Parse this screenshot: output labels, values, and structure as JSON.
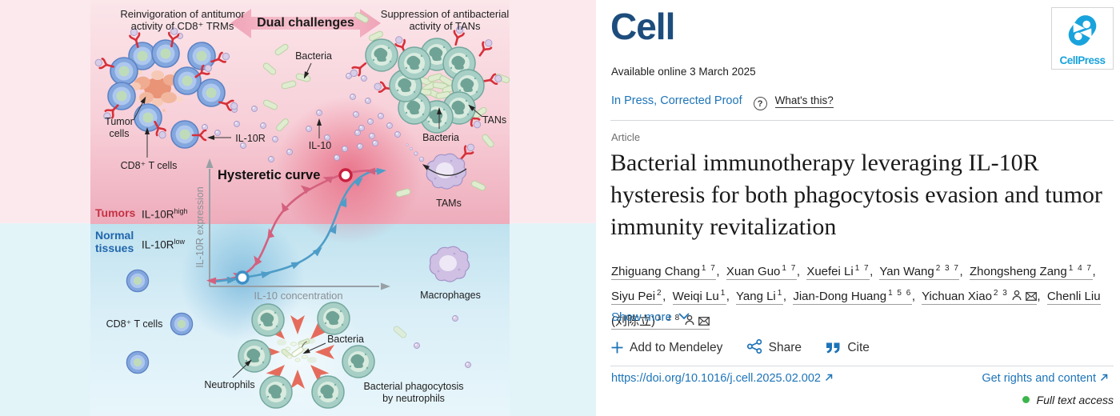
{
  "abstract": {
    "caption_left_1": "Reinvigoration of antitumor",
    "caption_left_2": "activity of CD8⁺ TRMs",
    "banner": "Dual challenges",
    "caption_right_1": "Suppression of antibacterial",
    "caption_right_2": "activity of TANs",
    "bacteria_top": "Bacteria",
    "tumor_cells_1": "Tumor",
    "tumor_cells_2": "cells",
    "cd8_top": "CD8⁺ T cells",
    "il10r": "IL-10R",
    "il10": "IL-10",
    "plot": {
      "title": "Hysteretic curve",
      "ylabel": "IL-10R expression",
      "xlabel": "IL-10 concentration"
    },
    "zone_tumors": "Tumors",
    "zone_tumors_r": "IL-10R",
    "zone_tumors_sup": "high",
    "zone_normal_1": "Normal",
    "zone_normal_2": "tissues",
    "zone_normal_r": "IL-10R",
    "zone_normal_sup": "low",
    "tans": "TANs",
    "bacteria_tan": "Bacteria",
    "tams": "TAMs",
    "macrophages": "Macrophages",
    "cd8_bottom": "CD8⁺ T cells",
    "neutrophils": "Neutrophils",
    "bacteria_phago": "Bacteria",
    "phago_1": "Bacterial phagocytosis",
    "phago_2": "by neutrophils"
  },
  "panel": {
    "journal": "Cell",
    "publisher": "CellPress",
    "available": "Available online 3 March 2025",
    "status": "In Press, Corrected Proof",
    "question_mark": "?",
    "whats_this": "What's this?",
    "article_type": "Article",
    "title": "Bacterial immunotherapy leveraging IL-10R hysteresis for both phagocytosis evasion and tumor immunity revitalization",
    "authors": [
      {
        "name": "Zhiguang Chang",
        "sup": "1 7"
      },
      {
        "name": "Xuan Guo",
        "sup": "1 7"
      },
      {
        "name": "Xuefei Li",
        "sup": "1 7"
      },
      {
        "name": "Yan Wang",
        "sup": "2 3 7"
      },
      {
        "name": "Zhongsheng Zang",
        "sup": "1 4 7"
      },
      {
        "name": "Siyu Pei",
        "sup": "2"
      },
      {
        "name": "Weiqi Lu",
        "sup": "1"
      },
      {
        "name": "Yang Li",
        "sup": "1"
      },
      {
        "name": "Jian-Dong Huang",
        "sup": "1 5 6"
      },
      {
        "name": "Yichuan Xiao",
        "sup": "2 3",
        "person": true,
        "email": true
      },
      {
        "name": "Chenli Liu (刘陈立)",
        "sup": "1 3 8",
        "person": true,
        "email": true
      }
    ],
    "show_more": "Show more",
    "add_to_mendeley": "Add to Mendeley",
    "share": "Share",
    "cite": "Cite",
    "doi": "https://doi.org/10.1016/j.cell.2025.02.002",
    "rights": "Get rights and content",
    "access": "Full text access"
  },
  "colors": {
    "link_blue": "#1d74b8",
    "cell_logo_navy": "#1d4d7d",
    "cellpress_blue": "#19a3dc",
    "access_green": "#3cb54a",
    "zone_red": "#c53244",
    "zone_blue": "#2166ad",
    "curve_pink": "#d4607e",
    "curve_blue": "#4e9dc8"
  }
}
